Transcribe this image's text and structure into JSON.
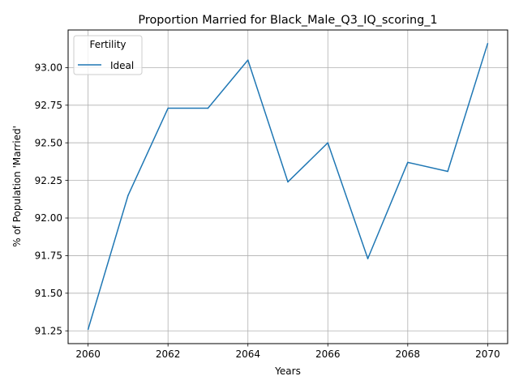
{
  "chart_data": {
    "type": "line",
    "title": "Proportion Married for Black_Male_Q3_IQ_scoring_1",
    "xlabel": "Years",
    "ylabel": "% of Population 'Married'",
    "x": [
      2060,
      2061,
      2062,
      2063,
      2064,
      2065,
      2066,
      2067,
      2068,
      2069,
      2070
    ],
    "series": [
      {
        "name": "Ideal",
        "color": "#1f77b4",
        "values": [
          91.26,
          92.15,
          92.73,
          92.73,
          93.05,
          92.24,
          92.5,
          91.73,
          92.37,
          92.31,
          93.16
        ]
      }
    ],
    "xlim": [
      2059.5,
      2070.5
    ],
    "ylim": [
      91.165,
      93.25
    ],
    "xticks": [
      2060,
      2062,
      2064,
      2066,
      2068,
      2070
    ],
    "xtick_labels": [
      "2060",
      "2062",
      "2064",
      "2066",
      "2068",
      "2070"
    ],
    "yticks": [
      91.25,
      91.5,
      91.75,
      92.0,
      92.25,
      92.5,
      92.75,
      93.0
    ],
    "ytick_labels": [
      "91.25",
      "91.50",
      "91.75",
      "92.00",
      "92.25",
      "92.50",
      "92.75",
      "93.00"
    ],
    "grid": true,
    "legend": {
      "title": "Fertility",
      "placement": "upper-left"
    }
  }
}
